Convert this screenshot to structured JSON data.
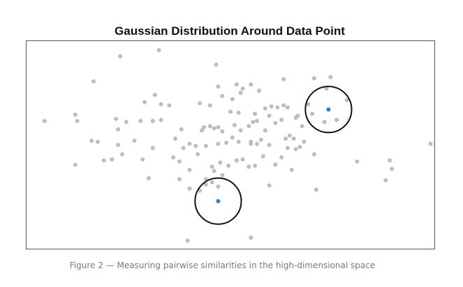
{
  "chart_data": {
    "type": "scatter",
    "title": "Gaussian Distribution Around Data Point",
    "xlabel": "",
    "ylabel": "",
    "xlim": [
      0,
      100
    ],
    "ylim": [
      0,
      100
    ],
    "grid": false,
    "legend": "none",
    "colors": {
      "background_points": "#bdbdbd",
      "highlight_points": "#3a7ab8",
      "circles": "#111111",
      "frame": "#555555"
    },
    "series": [
      {
        "role": "background",
        "points": [
          [
            23.0,
            92.5
          ],
          [
            32.5,
            95.5
          ],
          [
            46.5,
            88.5
          ],
          [
            16.5,
            80.5
          ],
          [
            47.0,
            78.0
          ],
          [
            51.5,
            79.0
          ],
          [
            53.0,
            77.0
          ],
          [
            55.0,
            79.0
          ],
          [
            31.5,
            74.0
          ],
          [
            48.0,
            73.5
          ],
          [
            50.5,
            72.0
          ],
          [
            52.5,
            75.0
          ],
          [
            57.0,
            76.0
          ],
          [
            63.0,
            81.5
          ],
          [
            70.5,
            82.0
          ],
          [
            74.5,
            82.5
          ],
          [
            73.5,
            77.0
          ],
          [
            29.0,
            70.5
          ],
          [
            33.0,
            69.5
          ],
          [
            35.0,
            69.0
          ],
          [
            42.5,
            70.0
          ],
          [
            45.0,
            69.0
          ],
          [
            50.0,
            66.0
          ],
          [
            52.0,
            65.5
          ],
          [
            56.0,
            65.0
          ],
          [
            58.5,
            67.5
          ],
          [
            60.0,
            68.5
          ],
          [
            61.5,
            68.0
          ],
          [
            63.0,
            69.0
          ],
          [
            64.0,
            68.0
          ],
          [
            66.5,
            64.0
          ],
          [
            69.0,
            69.5
          ],
          [
            70.0,
            65.0
          ],
          [
            73.0,
            61.0
          ],
          [
            76.0,
            62.0
          ],
          [
            66.0,
            63.0
          ],
          [
            4.5,
            61.5
          ],
          [
            12.0,
            64.5
          ],
          [
            12.5,
            61.5
          ],
          [
            22.0,
            62.5
          ],
          [
            24.5,
            61.0
          ],
          [
            22.5,
            57.5
          ],
          [
            28.0,
            61.5
          ],
          [
            31.0,
            61.5
          ],
          [
            33.0,
            62.0
          ],
          [
            38.0,
            57.5
          ],
          [
            43.0,
            57.0
          ],
          [
            43.5,
            58.5
          ],
          [
            45.0,
            59.0
          ],
          [
            46.0,
            58.0
          ],
          [
            47.0,
            58.5
          ],
          [
            48.0,
            56.5
          ],
          [
            51.0,
            59.5
          ],
          [
            52.5,
            57.0
          ],
          [
            54.5,
            59.0
          ],
          [
            55.5,
            61.0
          ],
          [
            58.5,
            57.0
          ],
          [
            61.0,
            60.5
          ],
          [
            62.5,
            62.0
          ],
          [
            59.5,
            64.0
          ],
          [
            56.5,
            61.5
          ],
          [
            64.5,
            54.5
          ],
          [
            16.0,
            52.0
          ],
          [
            17.5,
            51.5
          ],
          [
            36.5,
            53.0
          ],
          [
            40.0,
            50.5
          ],
          [
            41.5,
            49.5
          ],
          [
            38.5,
            48.5
          ],
          [
            42.0,
            45.5
          ],
          [
            44.0,
            49.5
          ],
          [
            47.0,
            50.5
          ],
          [
            49.0,
            51.0
          ],
          [
            50.5,
            53.5
          ],
          [
            52.0,
            51.5
          ],
          [
            55.0,
            50.5
          ],
          [
            55.0,
            51.5
          ],
          [
            56.5,
            50.5
          ],
          [
            57.5,
            52.5
          ],
          [
            63.5,
            53.0
          ],
          [
            64.0,
            48.5
          ],
          [
            66.0,
            48.0
          ],
          [
            67.0,
            49.0
          ],
          [
            68.0,
            51.5
          ],
          [
            65.5,
            53.0
          ],
          [
            59.5,
            50.0
          ],
          [
            31.0,
            48.5
          ],
          [
            28.5,
            43.0
          ],
          [
            26.5,
            52.0
          ],
          [
            22.5,
            50.0
          ],
          [
            19.0,
            42.5
          ],
          [
            21.0,
            43.0
          ],
          [
            23.5,
            45.5
          ],
          [
            12.0,
            40.5
          ],
          [
            36.0,
            44.0
          ],
          [
            37.5,
            42.0
          ],
          [
            40.0,
            38.0
          ],
          [
            45.5,
            39.5
          ],
          [
            47.5,
            41.5
          ],
          [
            49.5,
            40.0
          ],
          [
            51.5,
            42.5
          ],
          [
            53.0,
            43.0
          ],
          [
            54.5,
            39.5
          ],
          [
            56.0,
            40.0
          ],
          [
            58.0,
            44.5
          ],
          [
            62.5,
            44.0
          ],
          [
            61.0,
            40.5
          ],
          [
            65.0,
            38.0
          ],
          [
            59.5,
            30.5
          ],
          [
            70.5,
            45.5
          ],
          [
            81.0,
            42.0
          ],
          [
            89.0,
            42.5
          ],
          [
            89.5,
            38.5
          ],
          [
            88.0,
            33.0
          ],
          [
            99.0,
            50.5
          ],
          [
            30.0,
            34.0
          ],
          [
            37.5,
            33.5
          ],
          [
            40.0,
            29.0
          ],
          [
            42.5,
            28.0
          ],
          [
            44.0,
            31.0
          ],
          [
            45.5,
            32.0
          ],
          [
            47.0,
            30.0
          ],
          [
            48.0,
            35.5
          ],
          [
            46.0,
            37.5
          ],
          [
            44.0,
            33.5
          ],
          [
            71.0,
            28.5
          ],
          [
            39.5,
            4.0
          ],
          [
            55.0,
            5.5
          ],
          [
            78.5,
            71.5
          ],
          [
            67.5,
            59.0
          ]
        ]
      },
      {
        "role": "highlight",
        "points": [
          [
            74.0,
            67.0
          ],
          [
            47.0,
            23.0
          ]
        ]
      }
    ],
    "annotations": [
      {
        "shape": "circle",
        "center": [
          74.0,
          67.0
        ],
        "radius_x": 13.0
      },
      {
        "shape": "circle",
        "center": [
          47.0,
          23.0
        ],
        "radius_x": 13.0
      }
    ]
  },
  "caption": "Figure 2 — Measuring pairwise similarities in the high-dimensional space"
}
